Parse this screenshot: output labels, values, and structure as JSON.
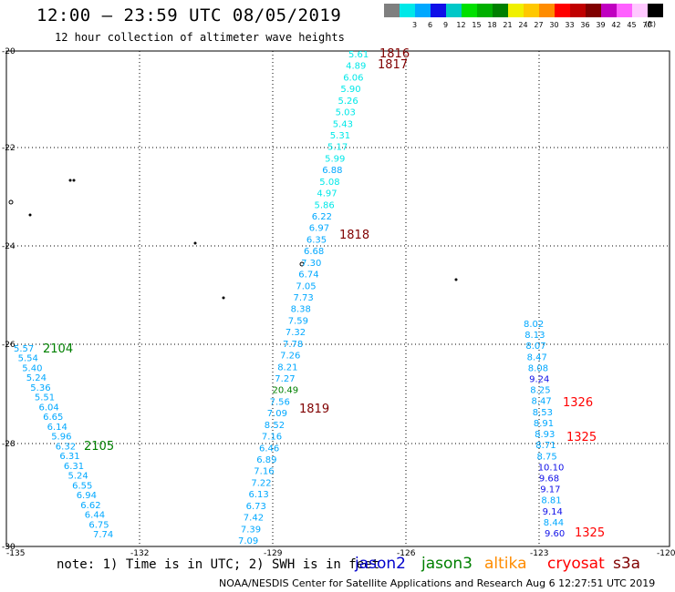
{
  "header": {
    "title": "12:00 – 23:59 UTC 08/05/2019",
    "subtitle": "12 hour collection of altimeter wave heights"
  },
  "legend": {
    "unit": "(ft)",
    "items": [
      {
        "label": "",
        "color": "#7f7f7f"
      },
      {
        "label": "3",
        "color": "#00e8e8"
      },
      {
        "label": "6",
        "color": "#00a8ff"
      },
      {
        "label": "9",
        "color": "#1010e8"
      },
      {
        "label": "12",
        "color": "#00c8c8"
      },
      {
        "label": "15",
        "color": "#00e000"
      },
      {
        "label": "18",
        "color": "#00b000"
      },
      {
        "label": "21",
        "color": "#008000"
      },
      {
        "label": "24",
        "color": "#f0f000"
      },
      {
        "label": "27",
        "color": "#ffc800"
      },
      {
        "label": "30",
        "color": "#ff8c00"
      },
      {
        "label": "33",
        "color": "#ff0000"
      },
      {
        "label": "36",
        "color": "#c00000"
      },
      {
        "label": "39",
        "color": "#800000"
      },
      {
        "label": "42",
        "color": "#c000c0"
      },
      {
        "label": "45",
        "color": "#ff60ff"
      },
      {
        "label": "70",
        "color": "#ffc8ff"
      },
      {
        "label": "",
        "color": "#000000"
      }
    ]
  },
  "axes": {
    "lon_labels": [
      "-135",
      "-132",
      "-129",
      "-126",
      "-123",
      "-120"
    ],
    "lat_labels": [
      "-20",
      "-22",
      "-24",
      "-26",
      "-28",
      "-30"
    ]
  },
  "tracks": {
    "track_a": [
      {
        "v": "5.61",
        "c": "#00e8e8"
      },
      {
        "v": "4.89",
        "c": "#00e8e8"
      },
      {
        "v": "6.06",
        "c": "#00e8e8"
      },
      {
        "v": "5.90",
        "c": "#00e8e8"
      },
      {
        "v": "5.26",
        "c": "#00e8e8"
      },
      {
        "v": "5.03",
        "c": "#00e8e8"
      },
      {
        "v": "5.43",
        "c": "#00e8e8"
      },
      {
        "v": "5.31",
        "c": "#00e8e8"
      },
      {
        "v": "5.17",
        "c": "#00e8e8"
      },
      {
        "v": "5.99",
        "c": "#00e8e8"
      },
      {
        "v": "6.88",
        "c": "#00a8ff"
      },
      {
        "v": "5.08",
        "c": "#00e8e8"
      },
      {
        "v": "4.97",
        "c": "#00e8e8"
      },
      {
        "v": "5.86",
        "c": "#00e8e8"
      },
      {
        "v": "6.22",
        "c": "#00a8ff"
      },
      {
        "v": "6.97",
        "c": "#00a8ff"
      },
      {
        "v": "6.35",
        "c": "#00a8ff"
      },
      {
        "v": "6.68",
        "c": "#00a8ff"
      },
      {
        "v": "7.30",
        "c": "#00a8ff"
      },
      {
        "v": "6.74",
        "c": "#00a8ff"
      },
      {
        "v": "7.05",
        "c": "#00a8ff"
      },
      {
        "v": "7.73",
        "c": "#00a8ff"
      },
      {
        "v": "8.38",
        "c": "#00a8ff"
      },
      {
        "v": "7.59",
        "c": "#00a8ff"
      },
      {
        "v": "7.32",
        "c": "#00a8ff"
      },
      {
        "v": "7.78",
        "c": "#00a8ff"
      },
      {
        "v": "7.26",
        "c": "#00a8ff"
      },
      {
        "v": "8.21",
        "c": "#00a8ff"
      },
      {
        "v": "7.27",
        "c": "#00a8ff"
      },
      {
        "v": "20.49",
        "c": "#008000"
      },
      {
        "v": "7.56",
        "c": "#00a8ff"
      },
      {
        "v": "7.09",
        "c": "#00a8ff"
      },
      {
        "v": "8.52",
        "c": "#00a8ff"
      },
      {
        "v": "7.16",
        "c": "#00a8ff"
      },
      {
        "v": "6.46",
        "c": "#00a8ff"
      },
      {
        "v": "6.89",
        "c": "#00a8ff"
      },
      {
        "v": "7.16",
        "c": "#00a8ff"
      },
      {
        "v": "7.22",
        "c": "#00a8ff"
      },
      {
        "v": "6.13",
        "c": "#00a8ff"
      },
      {
        "v": "6.73",
        "c": "#00a8ff"
      },
      {
        "v": "7.42",
        "c": "#00a8ff"
      },
      {
        "v": "7.39",
        "c": "#00a8ff"
      },
      {
        "v": "7.09",
        "c": "#00a8ff"
      }
    ],
    "track_b": [
      {
        "v": "5.57",
        "c": "#00a8ff"
      },
      {
        "v": "5.54",
        "c": "#00a8ff"
      },
      {
        "v": "5.40",
        "c": "#00a8ff"
      },
      {
        "v": "5.24",
        "c": "#00a8ff"
      },
      {
        "v": "5.36",
        "c": "#00a8ff"
      },
      {
        "v": "5.51",
        "c": "#00a8ff"
      },
      {
        "v": "6.04",
        "c": "#00a8ff"
      },
      {
        "v": "6.65",
        "c": "#00a8ff"
      },
      {
        "v": "6.14",
        "c": "#00a8ff"
      },
      {
        "v": "5.96",
        "c": "#00a8ff"
      },
      {
        "v": "6.32",
        "c": "#00a8ff"
      },
      {
        "v": "6.31",
        "c": "#00a8ff"
      },
      {
        "v": "6.31",
        "c": "#00a8ff"
      },
      {
        "v": "5.24",
        "c": "#00a8ff"
      },
      {
        "v": "6.55",
        "c": "#00a8ff"
      },
      {
        "v": "6.94",
        "c": "#00a8ff"
      },
      {
        "v": "6.62",
        "c": "#00a8ff"
      },
      {
        "v": "6.44",
        "c": "#00a8ff"
      },
      {
        "v": "6.75",
        "c": "#00a8ff"
      },
      {
        "v": "7.74",
        "c": "#00a8ff"
      }
    ],
    "track_c": [
      {
        "v": "8.02",
        "c": "#00a8ff"
      },
      {
        "v": "8.13",
        "c": "#00a8ff"
      },
      {
        "v": "8.07",
        "c": "#00a8ff"
      },
      {
        "v": "8.47",
        "c": "#00a8ff"
      },
      {
        "v": "8.08",
        "c": "#00a8ff"
      },
      {
        "v": "9.24",
        "c": "#1010e8"
      },
      {
        "v": "8.25",
        "c": "#00a8ff"
      },
      {
        "v": "8.47",
        "c": "#00a8ff"
      },
      {
        "v": "8.53",
        "c": "#00a8ff"
      },
      {
        "v": "8.91",
        "c": "#00a8ff"
      },
      {
        "v": "8.93",
        "c": "#00a8ff"
      },
      {
        "v": "8.71",
        "c": "#00a8ff"
      },
      {
        "v": "8.75",
        "c": "#00a8ff"
      },
      {
        "v": "10.10",
        "c": "#1010e8"
      },
      {
        "v": "9.68",
        "c": "#1010e8"
      },
      {
        "v": "9.17",
        "c": "#1010e8"
      },
      {
        "v": "8.81",
        "c": "#00a8ff"
      },
      {
        "v": "9.14",
        "c": "#1010e8"
      },
      {
        "v": "8.44",
        "c": "#00a8ff"
      },
      {
        "v": "9.60",
        "c": "#1010e8"
      }
    ]
  },
  "pass_labels": [
    {
      "text": "1816",
      "c": "#800000"
    },
    {
      "text": "1817",
      "c": "#800000"
    },
    {
      "text": "1818",
      "c": "#800000"
    },
    {
      "text": "1819",
      "c": "#800000"
    },
    {
      "text": "2104",
      "c": "#008000"
    },
    {
      "text": "2105",
      "c": "#008000"
    },
    {
      "text": "1326",
      "c": "#ff0000"
    },
    {
      "text": "1325",
      "c": "#ff0000"
    },
    {
      "text": "1325",
      "c": "#ff0000"
    }
  ],
  "footer": {
    "note": "note: 1) Time is in UTC; 2) SWH is in feet",
    "satellites": [
      {
        "name": "jason2",
        "color": "#0000cc"
      },
      {
        "name": "jason3",
        "color": "#008000"
      },
      {
        "name": "altika",
        "color": "#ff8c00"
      },
      {
        "name": "cryosat",
        "color": "#ff0000"
      },
      {
        "name": "s3a",
        "color": "#800000"
      }
    ],
    "credit": "NOAA/NESDIS Center for Satellite Applications and Research    Aug  6 12:27:51 UTC 2019"
  }
}
